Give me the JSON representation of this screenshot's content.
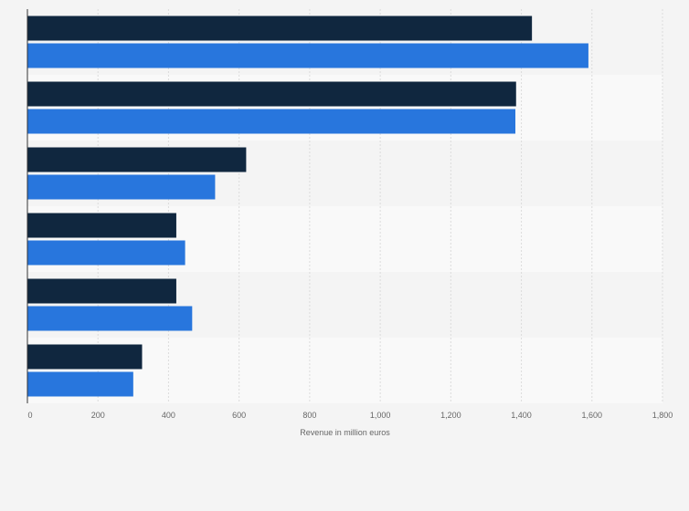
{
  "chart_data": {
    "type": "bar",
    "orientation": "horizontal",
    "title": "",
    "xlabel": "Revenue in million euros",
    "ylabel": "",
    "xlim": [
      0,
      1800
    ],
    "x_ticks": [
      0,
      200,
      400,
      600,
      800,
      1000,
      1200,
      1400,
      1600,
      1800
    ],
    "x_tick_labels": [
      "0",
      "200",
      "400",
      "600",
      "800",
      "1,000",
      "1,200",
      "1,400",
      "1,600",
      "1,800"
    ],
    "categories": [
      "",
      "",
      "",
      "",
      "",
      ""
    ],
    "series": [
      {
        "values": [
          1430,
          1385,
          620,
          422,
          422,
          325
        ],
        "color": "#10273f"
      },
      {
        "values": [
          1590,
          1383,
          532,
          447,
          467,
          300
        ],
        "color": "#2876dd"
      }
    ],
    "grid": "vertical",
    "band_colors": [
      "#f4f4f4",
      "#f9f9f9"
    ],
    "legend": "none"
  }
}
